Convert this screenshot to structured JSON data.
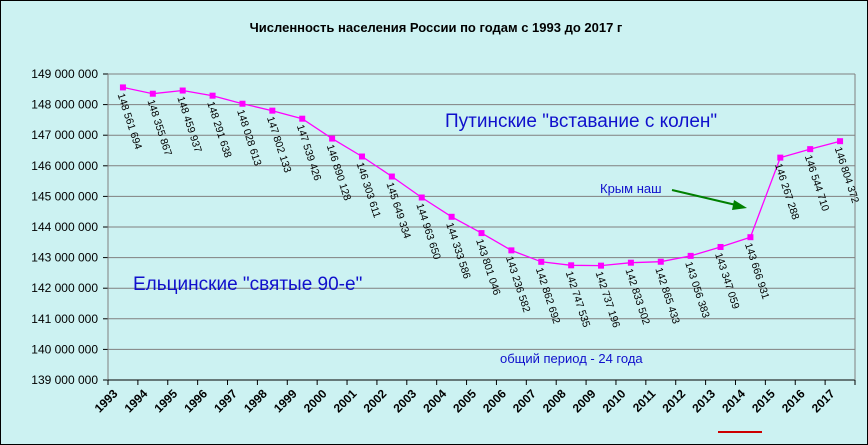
{
  "chart_data": {
    "type": "line",
    "title": "Численность населения России по годам с 1993 до 2017 г",
    "xlabel": "",
    "ylabel": "",
    "ylim": [
      139000000,
      149000000
    ],
    "ytick_step": 1000000,
    "grid": true,
    "legend": "none",
    "categories": [
      "1993",
      "1994",
      "1995",
      "1996",
      "1997",
      "1998",
      "1999",
      "2000",
      "2001",
      "2002",
      "2003",
      "2004",
      "2005",
      "2006",
      "2007",
      "2008",
      "2009",
      "2010",
      "2011",
      "2012",
      "2013",
      "2014",
      "2015",
      "2016",
      "2017"
    ],
    "series": [
      {
        "values": [
          148561694,
          148355867,
          148459937,
          148291638,
          148028613,
          147802133,
          147539426,
          146890128,
          146303611,
          145649334,
          144963650,
          144333586,
          143801046,
          143236582,
          142862692,
          142747535,
          142737196,
          142833502,
          142865433,
          143056383,
          143347059,
          143666931,
          146267288,
          146544710,
          146804372
        ],
        "labels": [
          "148 561 694",
          "148 355 867",
          "148 459 937",
          "148 291 638",
          "148 028 613",
          "147 802 133",
          "147 539 426",
          "146 890 128",
          "146 303 611",
          "145 649 334",
          "144 963 650",
          "144 333 586",
          "143 801 046",
          "143 236 582",
          "142 862 692",
          "142 747 535",
          "142 737 196",
          "142 833 502",
          "142 865 433",
          "143 056 383",
          "143 347 059",
          "143 666 931",
          "146 267 288",
          "146 544 710",
          "146 804 372"
        ],
        "color": "#ff00ff"
      }
    ],
    "ytick_labels": [
      "139 000 000",
      "140 000 000",
      "141 000 000",
      "142 000 000",
      "143 000 000",
      "144 000 000",
      "145 000 000",
      "146 000 000",
      "147 000 000",
      "148 000 000",
      "149 000 000"
    ],
    "annotations": {
      "putin": "Путинские \"вставание с колен\"",
      "yeltsin": "Ельцинские \"святые 90-е\"",
      "crimea": "Крым наш",
      "period": "общий период - 24 года"
    },
    "colors": {
      "line": "#ff00ff",
      "marker": "#ff00ff",
      "annotation": "#1010cc",
      "arrow": "#008000",
      "underline": "#cc0000",
      "grid": "#808080",
      "plot_bg": "#ccf2f2"
    },
    "highlighted_year": "2014"
  }
}
